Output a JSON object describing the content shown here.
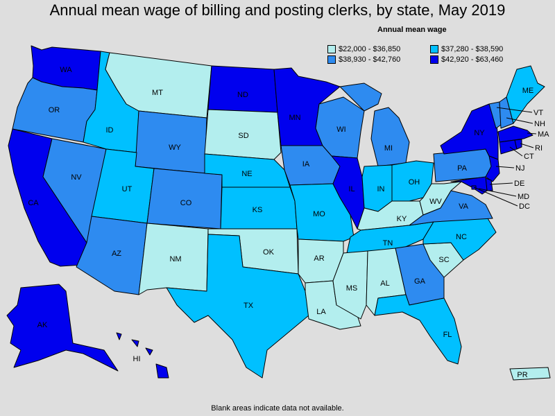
{
  "title": "Annual mean wage of billing and posting clerks, by state, May 2019",
  "footnote": "Blank areas indicate data not available.",
  "legend": {
    "title": "Annual mean wage",
    "items": [
      {
        "label": "$22,000 - $36,850",
        "color": "#b3eeee"
      },
      {
        "label": "$37,280 - $38,590",
        "color": "#00c0ff"
      },
      {
        "label": "$38,930 - $42,760",
        "color": "#2e8bf0"
      },
      {
        "label": "$42,920 - $63,460",
        "color": "#0000ee"
      }
    ]
  },
  "states": {
    "WA": 3,
    "OR": 2,
    "CA": 3,
    "NV": 2,
    "ID": 1,
    "MT": 0,
    "WY": 2,
    "UT": 1,
    "AZ": 2,
    "CO": 2,
    "NM": 0,
    "ND": 3,
    "SD": 0,
    "NE": 1,
    "KS": 1,
    "OK": 0,
    "TX": 1,
    "MN": 3,
    "IA": 2,
    "MO": 1,
    "AR": 0,
    "LA": 0,
    "WI": 2,
    "IL": 3,
    "MI": 2,
    "IN": 1,
    "OH": 1,
    "KY": 0,
    "TN": 1,
    "MS": 0,
    "AL": 0,
    "GA": 2,
    "FL": 1,
    "SC": 0,
    "NC": 1,
    "VA": 2,
    "WV": 0,
    "PA": 2,
    "NY": 3,
    "ME": 1,
    "VT": 2,
    "NH": 2,
    "MA": 3,
    "RI": 3,
    "CT": 3,
    "NJ": 3,
    "DE": 3,
    "MD": 3,
    "DC": 3,
    "AK": 3,
    "HI": 3,
    "PR": 0
  }
}
